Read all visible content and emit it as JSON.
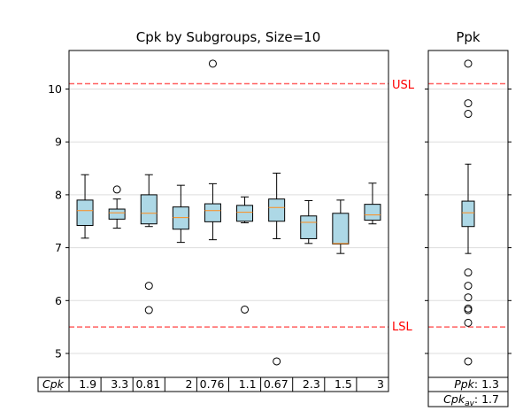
{
  "chart_data": [
    {
      "type": "boxplot",
      "title": "Cpk by Subgroups, Size=10",
      "ylim": [
        4.5,
        10.75
      ],
      "yticks": [
        5,
        6,
        7,
        8,
        9,
        10
      ],
      "grid": "horizontal",
      "limits": {
        "usl": {
          "label": "USL",
          "value": 10.1
        },
        "lsl": {
          "label": "LSL",
          "value": 5.5
        },
        "color": "#ff6060"
      },
      "box_color": "#add8e6",
      "median_color": "#ff8c1a",
      "boxes": [
        {
          "q1": 7.42,
          "median": 7.7,
          "q3": 7.9,
          "whislo": 7.18,
          "whishi": 8.38,
          "fliers": []
        },
        {
          "q1": 7.54,
          "median": 7.66,
          "q3": 7.73,
          "whislo": 7.37,
          "whishi": 7.92,
          "fliers": [
            8.1
          ]
        },
        {
          "q1": 7.45,
          "median": 7.65,
          "q3": 8.0,
          "whislo": 7.4,
          "whishi": 8.38,
          "fliers": [
            6.28,
            5.82
          ]
        },
        {
          "q1": 7.35,
          "median": 7.57,
          "q3": 7.77,
          "whislo": 7.1,
          "whishi": 8.18,
          "fliers": []
        },
        {
          "q1": 7.49,
          "median": 7.7,
          "q3": 7.83,
          "whislo": 7.15,
          "whishi": 8.21,
          "fliers": [
            10.48
          ]
        },
        {
          "q1": 7.5,
          "median": 7.67,
          "q3": 7.8,
          "whislo": 7.47,
          "whishi": 7.96,
          "fliers": [
            5.83
          ]
        },
        {
          "q1": 7.5,
          "median": 7.76,
          "q3": 7.92,
          "whislo": 7.17,
          "whishi": 8.41,
          "fliers": [
            4.85
          ]
        },
        {
          "q1": 7.17,
          "median": 7.48,
          "q3": 7.6,
          "whislo": 7.08,
          "whishi": 7.89,
          "fliers": []
        },
        {
          "q1": 7.07,
          "median": 7.08,
          "q3": 7.65,
          "whislo": 6.89,
          "whishi": 7.9,
          "fliers": []
        },
        {
          "q1": 7.52,
          "median": 7.62,
          "q3": 7.82,
          "whislo": 7.45,
          "whishi": 8.22,
          "fliers": []
        }
      ],
      "table": {
        "row_label": "Cpk",
        "values": [
          "1.9",
          "3.3",
          "0.81",
          "2",
          "0.76",
          "1.1",
          "0.67",
          "2.3",
          "1.5",
          "3"
        ]
      }
    },
    {
      "type": "boxplot",
      "title": "Ppk",
      "ylim": [
        4.5,
        10.75
      ],
      "box": {
        "q1": 7.4,
        "median": 7.66,
        "q3": 7.88,
        "whislo": 6.89,
        "whishi": 8.58,
        "fliers": [
          10.48,
          9.73,
          9.53,
          6.53,
          6.28,
          6.06,
          5.85,
          5.82,
          5.58,
          4.85
        ]
      },
      "table": [
        {
          "label": "Ppk",
          "value": "1.3"
        },
        {
          "label": "Cpk",
          "subscript": "av",
          "value": "1.7"
        }
      ]
    }
  ]
}
